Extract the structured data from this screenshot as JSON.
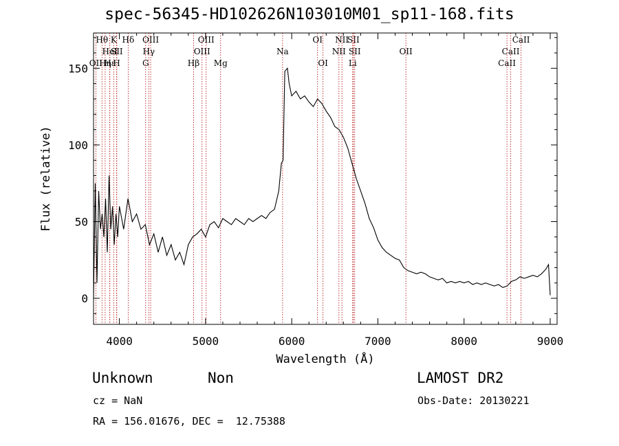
{
  "title": "spec-56345-HD102626N103010M01_sp11-168.fits",
  "footer": {
    "object_class": "Unknown",
    "subclass": "Non",
    "cz": "cz = NaN",
    "coords": "RA = 156.01676, DEC =  12.75388",
    "survey": "LAMOST DR2",
    "obs_date": "Obs-Date: 20130221"
  },
  "colors": {
    "spectrum": "#000000",
    "line_marker": "#b00000",
    "frame": "#000000"
  },
  "chart_data": {
    "type": "line",
    "xlabel": "Wavelength (Å)",
    "ylabel": "Flux (relative)",
    "xlim": [
      3700,
      9080
    ],
    "ylim": [
      -17,
      173
    ],
    "xticks": [
      4000,
      5000,
      6000,
      7000,
      8000,
      9000
    ],
    "yticks": [
      0,
      50,
      100,
      150
    ],
    "grid": false,
    "series": [
      {
        "x": [
          3700,
          3720,
          3740,
          3760,
          3780,
          3800,
          3820,
          3840,
          3860,
          3880,
          3900,
          3920,
          3940,
          3960,
          3980,
          4000,
          4050,
          4100,
          4150,
          4200,
          4250,
          4300,
          4350,
          4400,
          4450,
          4500,
          4550,
          4600,
          4650,
          4700,
          4750,
          4800,
          4850,
          4900,
          4950,
          5000,
          5050,
          5100,
          5150,
          5200,
          5250,
          5300,
          5350,
          5400,
          5450,
          5500,
          5550,
          5600,
          5650,
          5700,
          5750,
          5800,
          5850,
          5880,
          5900,
          5920,
          5950,
          5970,
          6000,
          6050,
          6100,
          6150,
          6200,
          6250,
          6300,
          6350,
          6400,
          6450,
          6500,
          6550,
          6600,
          6650,
          6700,
          6750,
          6800,
          6850,
          6900,
          6950,
          7000,
          7050,
          7100,
          7150,
          7200,
          7250,
          7300,
          7350,
          7400,
          7450,
          7500,
          7550,
          7600,
          7650,
          7700,
          7750,
          7800,
          7850,
          7900,
          7950,
          8000,
          8050,
          8100,
          8150,
          8200,
          8250,
          8300,
          8350,
          8400,
          8450,
          8500,
          8550,
          8600,
          8650,
          8700,
          8750,
          8800,
          8850,
          8900,
          8950,
          8980,
          9000
        ],
        "y": [
          0,
          75,
          10,
          70,
          45,
          55,
          40,
          65,
          30,
          80,
          45,
          60,
          35,
          55,
          40,
          60,
          45,
          65,
          50,
          55,
          45,
          48,
          35,
          42,
          30,
          40,
          28,
          35,
          25,
          30,
          22,
          35,
          40,
          42,
          45,
          40,
          48,
          50,
          46,
          52,
          50,
          48,
          52,
          50,
          48,
          52,
          50,
          52,
          54,
          52,
          56,
          58,
          70,
          88,
          90,
          148,
          150,
          140,
          132,
          135,
          130,
          132,
          128,
          125,
          130,
          127,
          122,
          118,
          112,
          110,
          105,
          98,
          88,
          78,
          70,
          62,
          52,
          46,
          38,
          33,
          30,
          28,
          26,
          25,
          20,
          18,
          17,
          16,
          17,
          16,
          14,
          13,
          12,
          13,
          10,
          11,
          10,
          11,
          10,
          11,
          9,
          10,
          9,
          10,
          9,
          8,
          9,
          7,
          8,
          11,
          12,
          14,
          13,
          14,
          15,
          14,
          16,
          19,
          22,
          2
        ]
      }
    ],
    "line_markers": [
      {
        "label": "OII",
        "x": 3727,
        "row": 3
      },
      {
        "label": "Hθ",
        "x": 3798,
        "row": 1
      },
      {
        "label": "Hη",
        "x": 3835,
        "row": 3
      },
      {
        "label": "HeI",
        "x": 3889,
        "row": 2
      },
      {
        "label": "Hε",
        "x": 3889,
        "row": 3
      },
      {
        "label": "K",
        "x": 3934,
        "row": 1
      },
      {
        "label": "SII",
        "x": 3970,
        "row": 2
      },
      {
        "label": "H",
        "x": 3968,
        "row": 3
      },
      {
        "label": "Hδ",
        "x": 4102,
        "row": 1
      },
      {
        "label": "OIII",
        "x": 4363,
        "row": 1
      },
      {
        "label": "Hγ",
        "x": 4341,
        "row": 2
      },
      {
        "label": "G",
        "x": 4305,
        "row": 3
      },
      {
        "label": "OIII",
        "x": 5007,
        "row": 1
      },
      {
        "label": "OIII",
        "x": 4959,
        "row": 2
      },
      {
        "label": "Hβ",
        "x": 4861,
        "row": 3
      },
      {
        "label": "Mg",
        "x": 5175,
        "row": 3
      },
      {
        "label": "Na",
        "x": 5894,
        "row": 2
      },
      {
        "label": "OI",
        "x": 6300,
        "row": 1
      },
      {
        "label": "OI",
        "x": 6363,
        "row": 3
      },
      {
        "label": "NII",
        "x": 6583,
        "row": 1
      },
      {
        "label": "NII",
        "x": 6548,
        "row": 2
      },
      {
        "label": "SII",
        "x": 6716,
        "row": 1
      },
      {
        "label": "SII",
        "x": 6731,
        "row": 2
      },
      {
        "label": "Li",
        "x": 6708,
        "row": 3
      },
      {
        "label": "OII",
        "x": 7325,
        "row": 2
      },
      {
        "label": "CaII",
        "x": 8662,
        "row": 1
      },
      {
        "label": "CaII",
        "x": 8542,
        "row": 2
      },
      {
        "label": "CaII",
        "x": 8498,
        "row": 3
      }
    ]
  }
}
